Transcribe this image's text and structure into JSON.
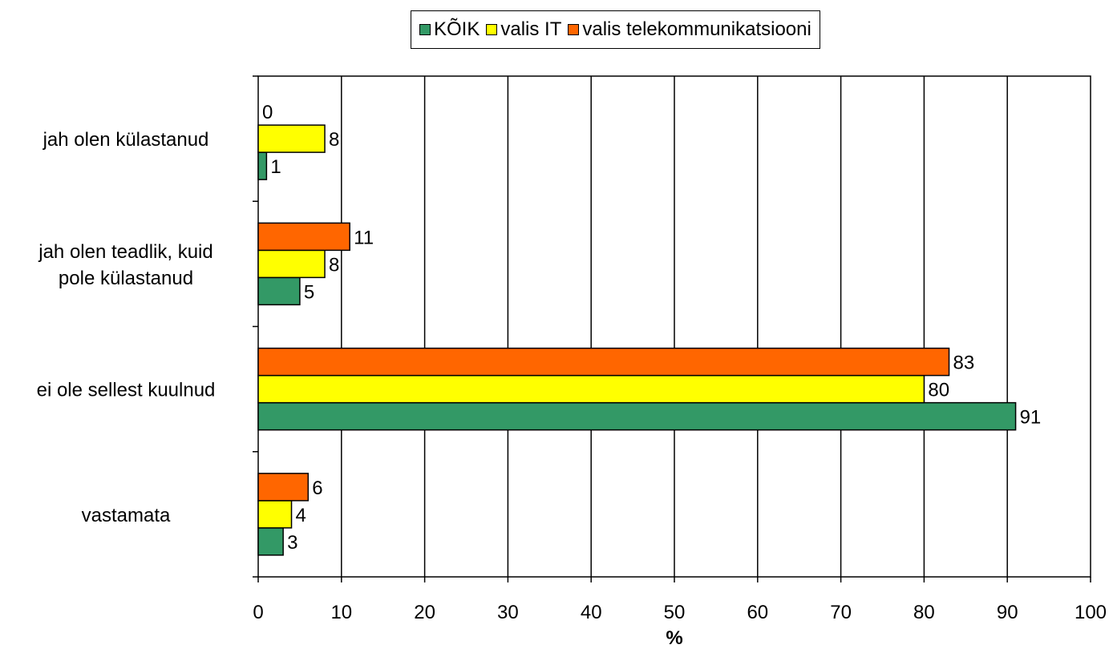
{
  "chart_data": {
    "type": "bar",
    "orientation": "horizontal",
    "categories": [
      "jah olen külastanud",
      "jah olen teadlik, kuid pole külastanud",
      "ei ole sellest kuulnud",
      "vastamata"
    ],
    "category_lines": [
      [
        "jah olen külastanud"
      ],
      [
        "jah olen teadlik, kuid",
        "pole külastanud"
      ],
      [
        "ei ole sellest kuulnud"
      ],
      [
        "vastamata"
      ]
    ],
    "series": [
      {
        "name": "KÕIK",
        "color": "#339966",
        "values": [
          1,
          5,
          91,
          3
        ],
        "labels": [
          "1",
          "5",
          "91",
          "3"
        ]
      },
      {
        "name": "valis IT",
        "color": "#FFFF00",
        "values": [
          8,
          8,
          80,
          4
        ],
        "labels": [
          "8",
          "8",
          "80",
          "4"
        ]
      },
      {
        "name": "valis telekommunikatsiooni",
        "color": "#FF6600",
        "values": [
          0,
          11,
          83,
          6
        ],
        "labels": [
          "0",
          "11",
          "83",
          "6"
        ]
      }
    ],
    "xlim": [
      0,
      100
    ],
    "xticks": [
      0,
      10,
      20,
      30,
      40,
      50,
      60,
      70,
      80,
      90,
      100
    ],
    "xlabel": "%",
    "grid": true,
    "legend_position": "top"
  }
}
